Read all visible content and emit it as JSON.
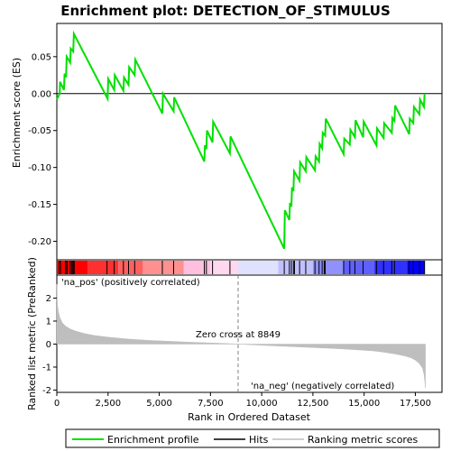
{
  "chart_data": {
    "type": "line",
    "title": "Enrichment plot: DETECTION_OF_STIMULUS",
    "xlabel": "Rank in Ordered Dataset",
    "ylabel_top": "Enrichment score (ES)",
    "ylabel_bottom": "Ranked list metric (PreRanked)",
    "xlim": [
      0,
      18800
    ],
    "x_ticks": [
      0,
      2500,
      5000,
      7500,
      10000,
      12500,
      15000,
      17500
    ],
    "x_tick_labels": [
      "0",
      "2,500",
      "5,000",
      "7,500",
      "10,000",
      "12,500",
      "15,000",
      "17,500"
    ],
    "es_ylim": [
      -0.225,
      0.095
    ],
    "es_ticks": [
      -0.2,
      -0.15,
      -0.1,
      -0.05,
      0.0,
      0.05
    ],
    "es_tick_labels": [
      "-0.20",
      "-0.15",
      "-0.10",
      "-0.05",
      "0.00",
      "0.05"
    ],
    "metric_ylim": [
      -2.1,
      3.0
    ],
    "metric_ticks": [
      -2,
      -1,
      0,
      1,
      2
    ],
    "metric_tick_labels": [
      "-2",
      "-1",
      "0",
      "1",
      "2"
    ],
    "zero_cross": 8849,
    "zero_cross_label": "Zero cross at 8849",
    "pos_label": "'na_pos' (positively correlated)",
    "neg_label": "'na_neg' (negatively correlated)",
    "legend": [
      "Enrichment profile",
      "Hits",
      "Ranking metric scores"
    ],
    "colors": {
      "enrichment": "#00e000",
      "hits": "#000000",
      "metric": "#bebebe",
      "pos_label": "#cc0000",
      "neg_label": "#0000cc",
      "zero_line": "#808080"
    },
    "enrichment_profile": {
      "x": [
        0,
        140,
        160,
        350,
        380,
        450,
        480,
        650,
        680,
        800,
        830,
        2480,
        2510,
        2800,
        2830,
        3250,
        3280,
        3500,
        3530,
        3800,
        3830,
        5150,
        5180,
        5700,
        5730,
        7200,
        7230,
        7300,
        7330,
        7600,
        7630,
        8450,
        8480,
        11100,
        11130,
        11350,
        11380,
        11450,
        11480,
        11550,
        11580,
        11850,
        11880,
        12150,
        12180,
        12600,
        12630,
        12800,
        12830,
        12950,
        12980,
        13100,
        13130,
        14000,
        14030,
        14300,
        14330,
        14550,
        14580,
        14950,
        14980,
        15600,
        15630,
        15950,
        15980,
        16350,
        16380,
        16480,
        16510,
        17200,
        17230,
        17400,
        17430,
        17700,
        17730,
        17920,
        17950
      ],
      "y": [
        -0.008,
        0.0,
        0.016,
        0.005,
        0.027,
        0.022,
        0.05,
        0.042,
        0.061,
        0.057,
        0.081,
        -0.007,
        0.02,
        0.005,
        0.025,
        0.004,
        0.022,
        0.012,
        0.036,
        0.025,
        0.046,
        -0.027,
        0.0,
        -0.024,
        -0.005,
        -0.092,
        -0.07,
        -0.075,
        -0.05,
        -0.066,
        -0.038,
        -0.081,
        -0.058,
        -0.21,
        -0.158,
        -0.171,
        -0.148,
        -0.153,
        -0.127,
        -0.132,
        -0.105,
        -0.118,
        -0.093,
        -0.105,
        -0.086,
        -0.104,
        -0.085,
        -0.092,
        -0.068,
        -0.074,
        -0.053,
        -0.057,
        -0.034,
        -0.082,
        -0.061,
        -0.069,
        -0.049,
        -0.059,
        -0.036,
        -0.059,
        -0.038,
        -0.07,
        -0.047,
        -0.06,
        -0.04,
        -0.053,
        -0.033,
        -0.037,
        -0.016,
        -0.055,
        -0.034,
        -0.04,
        -0.018,
        -0.028,
        -0.008,
        -0.018,
        0.0
      ]
    },
    "hit_ranks": [
      120,
      180,
      420,
      480,
      500,
      650,
      720,
      780,
      820,
      850,
      2450,
      2800,
      3250,
      3500,
      3800,
      5150,
      5700,
      7200,
      7300,
      7600,
      8450,
      11100,
      11350,
      11450,
      11550,
      11600,
      11850,
      12150,
      12600,
      12800,
      12950,
      13050,
      13100,
      14000,
      14300,
      14550,
      14950,
      15600,
      15950,
      16350,
      16480,
      17200,
      17400,
      17700,
      17950
    ],
    "ranking_metric": {
      "x": [
        0,
        30,
        80,
        150,
        250,
        400,
        600,
        900,
        1300,
        1800,
        2500,
        3500,
        4500,
        5500,
        6500,
        7500,
        8200,
        8849,
        9500,
        10500,
        11500,
        12500,
        13500,
        14500,
        15500,
        16000,
        16500,
        17000,
        17300,
        17500,
        17700,
        17850,
        17920,
        17960,
        17990
      ],
      "y": [
        2.6,
        1.7,
        1.4,
        1.15,
        0.95,
        0.8,
        0.68,
        0.57,
        0.47,
        0.38,
        0.3,
        0.22,
        0.16,
        0.12,
        0.08,
        0.05,
        0.03,
        0.0,
        -0.03,
        -0.07,
        -0.11,
        -0.15,
        -0.19,
        -0.24,
        -0.3,
        -0.36,
        -0.43,
        -0.52,
        -0.6,
        -0.7,
        -0.85,
        -1.05,
        -1.3,
        -1.6,
        -1.9
      ]
    },
    "color_bar": {
      "stops": [
        "#ff0000",
        "#ff3030",
        "#ff6060",
        "#ff9090",
        "#ffc0e0",
        "#ffd8f0",
        "#e0e0ff",
        "#c0c0ff",
        "#9090ff",
        "#6060ff",
        "#3030ff",
        "#0000ff"
      ],
      "positions": [
        0,
        1500,
        3000,
        4200,
        6200,
        7500,
        8849,
        10800,
        12500,
        14000,
        15500,
        17100,
        17950
      ]
    }
  }
}
